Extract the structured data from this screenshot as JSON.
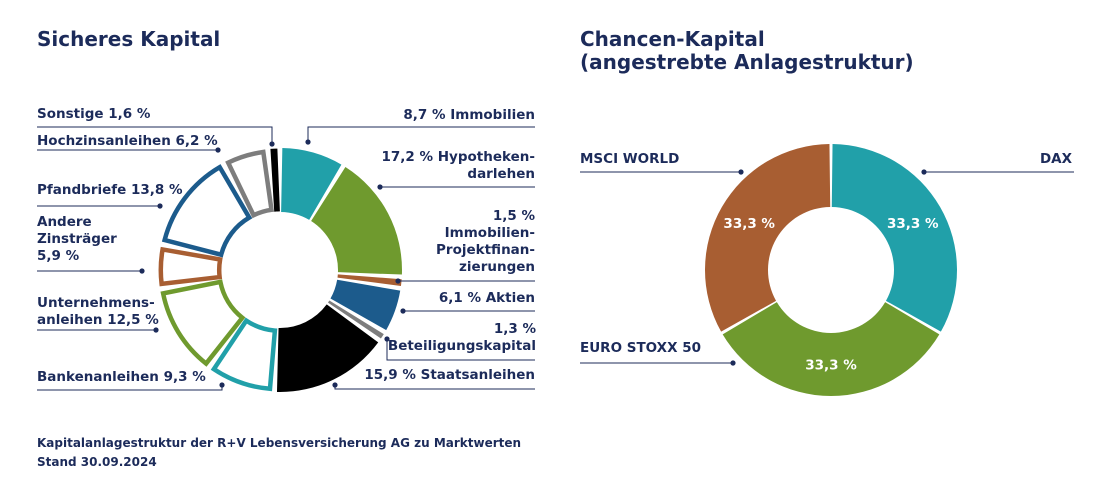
{
  "charts_text": {
    "left_title": "Sicheres Kapital",
    "right_title_line1": "Chancen-Kapital",
    "right_title_line2": "(angestrebte Anlagestruktur)",
    "footnote_line1": "Kapitalanlagestruktur der R+V Lebensversicherung AG zu Marktwerten",
    "footnote_line2": "Stand 30.09.2024"
  },
  "chart_data": [
    {
      "type": "pie",
      "title": "Sicheres Kapital",
      "donut": true,
      "unit": "%",
      "slices": [
        {
          "value": 8.7,
          "color": "#21a0a9",
          "filled": true,
          "label_lines": [
            "8,7 % Immobilien"
          ]
        },
        {
          "value": 17.2,
          "color": "#6f9a2e",
          "filled": true,
          "label_lines": [
            "17,2 % Hypotheken-",
            "darlehen"
          ]
        },
        {
          "value": 1.5,
          "color": "#a85e32",
          "filled": true,
          "label_lines": [
            "1,5 %",
            "Immobilien-",
            "Projektfinan-",
            "zierungen"
          ]
        },
        {
          "value": 6.1,
          "color": "#1c5b8c",
          "filled": true,
          "label_lines": [
            "6,1 % Aktien"
          ]
        },
        {
          "value": 1.3,
          "color": "#7d7d7d",
          "filled": true,
          "label_lines": [
            "1,3 %",
            "Beteiligungskapital"
          ]
        },
        {
          "value": 15.9,
          "color": "#000000",
          "filled": true,
          "label_lines": [
            "15,9 % Staatsanleihen"
          ]
        },
        {
          "value": 9.3,
          "color": "#21a0a9",
          "filled": false,
          "label_lines": [
            "Bankenanleihen 9,3 %"
          ]
        },
        {
          "value": 12.5,
          "color": "#6f9a2e",
          "filled": false,
          "label_lines": [
            "Unternehmens-",
            "anleihen 12,5 %"
          ]
        },
        {
          "value": 5.9,
          "color": "#a85e32",
          "filled": false,
          "label_lines": [
            "Andere",
            "Zinsträger",
            "5,9 %"
          ]
        },
        {
          "value": 13.8,
          "color": "#1c5b8c",
          "filled": false,
          "label_lines": [
            "Pfandbriefe 13,8 %"
          ]
        },
        {
          "value": 6.2,
          "color": "#7d7d7d",
          "filled": false,
          "label_lines": [
            "Hochzinsanleihen 6,2 %"
          ]
        },
        {
          "value": 1.6,
          "color": "#000000",
          "filled": false,
          "label_lines": [
            "Sonstige 1,6 %"
          ]
        }
      ]
    },
    {
      "type": "pie",
      "title": "Chancen-Kapital (angestrebte Anlagestruktur)",
      "donut": true,
      "unit": "%",
      "slices": [
        {
          "name": "DAX",
          "value": 33.3,
          "value_label": "33,3 %",
          "color": "#21a0a9"
        },
        {
          "name": "EURO STOXX 50",
          "value": 33.3,
          "value_label": "33,3 %",
          "color": "#6f9a2e"
        },
        {
          "name": "MSCI WORLD",
          "value": 33.3,
          "value_label": "33,3 %",
          "color": "#a85e32"
        }
      ]
    }
  ],
  "colors": {
    "text": "#1c2b5a",
    "connector": "#1c2b5a"
  }
}
